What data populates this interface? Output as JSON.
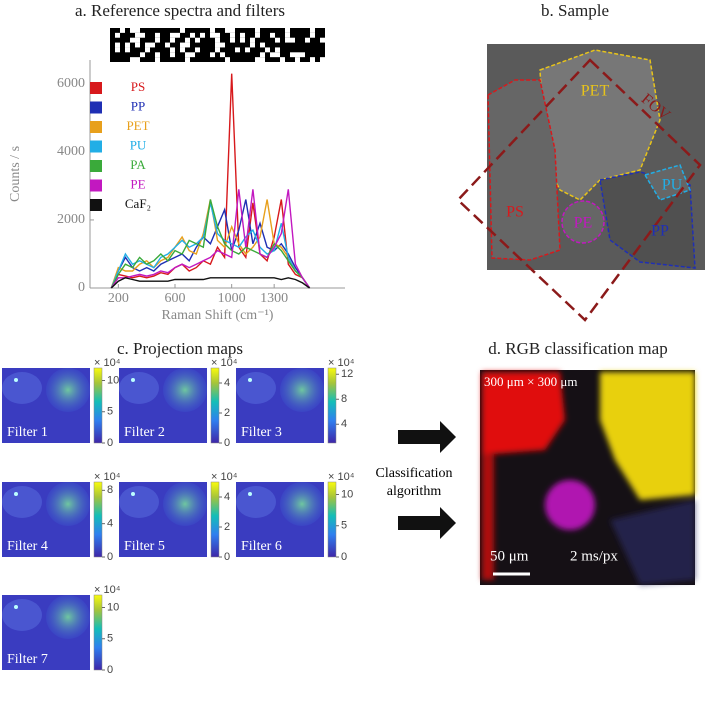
{
  "chart_data": {
    "type": "line",
    "title": "a. Reference spectra and filters",
    "x_label": "Raman Shift (cm⁻¹)",
    "y_label": "Counts / s",
    "x": [
      150,
      200,
      250,
      300,
      350,
      400,
      450,
      500,
      550,
      600,
      650,
      700,
      750,
      800,
      850,
      900,
      950,
      1000,
      1050,
      1100,
      1150,
      1200,
      1250,
      1300,
      1350,
      1400,
      1450,
      1500,
      1550
    ],
    "series": [
      {
        "name": "PS",
        "color": "#d7191c",
        "values": [
          0,
          400,
          350,
          300,
          350,
          300,
          350,
          450,
          400,
          600,
          700,
          500,
          600,
          800,
          700,
          1200,
          900,
          6300,
          1200,
          900,
          2500,
          1000,
          800,
          1500,
          2600,
          700,
          400,
          300,
          0
        ]
      },
      {
        "name": "PP",
        "color": "#1f2fb4",
        "values": [
          0,
          500,
          900,
          600,
          500,
          600,
          500,
          700,
          800,
          900,
          1000,
          800,
          1200,
          1500,
          1300,
          1800,
          2300,
          1100,
          1700,
          2600,
          1300,
          1900,
          1200,
          1100,
          1300,
          1000,
          600,
          300,
          0
        ]
      },
      {
        "name": "PET",
        "color": "#e8a01c",
        "values": [
          0,
          600,
          500,
          500,
          700,
          800,
          600,
          800,
          900,
          1200,
          1500,
          1100,
          1000,
          1600,
          2600,
          1400,
          1200,
          1800,
          1300,
          1000,
          1200,
          1500,
          2600,
          1300,
          1200,
          900,
          500,
          300,
          0
        ]
      },
      {
        "name": "PU",
        "color": "#22aee6",
        "values": [
          0,
          500,
          1000,
          700,
          800,
          700,
          600,
          900,
          1000,
          1200,
          1400,
          1200,
          1300,
          1500,
          2500,
          1600,
          1400,
          1300,
          1200,
          1500,
          1700,
          1200,
          1000,
          1100,
          1900,
          900,
          500,
          300,
          0
        ]
      },
      {
        "name": "PA",
        "color": "#3aaa3a",
        "values": [
          0,
          400,
          700,
          600,
          900,
          700,
          800,
          1000,
          800,
          1100,
          1000,
          1400,
          1300,
          1200,
          2600,
          1800,
          1300,
          1100,
          1000,
          1200,
          1100,
          1000,
          900,
          1300,
          1100,
          800,
          500,
          300,
          0
        ]
      },
      {
        "name": "PE",
        "color": "#c218c0",
        "values": [
          0,
          300,
          300,
          350,
          400,
          350,
          400,
          500,
          450,
          600,
          700,
          600,
          700,
          800,
          900,
          1100,
          1000,
          900,
          2900,
          1200,
          2900,
          1000,
          900,
          1200,
          1600,
          2900,
          700,
          300,
          0
        ]
      },
      {
        "name": "CaF₂",
        "color": "#111111",
        "values": [
          0,
          200,
          300,
          250,
          200,
          200,
          200,
          200,
          200,
          250,
          250,
          250,
          250,
          250,
          300,
          300,
          300,
          300,
          300,
          300,
          300,
          300,
          300,
          300,
          250,
          300,
          250,
          150,
          0
        ]
      }
    ],
    "xlim": [
      0,
      1800
    ],
    "ylim": [
      0,
      6700
    ],
    "xticks": [
      200,
      600,
      1000,
      1300
    ],
    "yticks": [
      0,
      2000,
      4000,
      6000
    ]
  },
  "sample": {
    "title": "b. Sample",
    "labels": [
      "PET",
      "PS",
      "PE",
      "PU",
      "PP",
      "FOV"
    ]
  },
  "projection": {
    "title": "c. Projection maps",
    "maps": [
      {
        "label": "Filter 1",
        "scale": "× 10⁴",
        "clim": [
          0,
          12
        ],
        "ticks": [
          10,
          5,
          0
        ]
      },
      {
        "label": "Filter 2",
        "scale": "× 10⁴",
        "clim": [
          0,
          5
        ],
        "ticks": [
          4,
          2,
          0
        ]
      },
      {
        "label": "Filter 3",
        "scale": "× 10⁴",
        "clim": [
          1,
          13
        ],
        "ticks": [
          12,
          8,
          4
        ]
      },
      {
        "label": "Filter 4",
        "scale": "× 10⁴",
        "clim": [
          0,
          9
        ],
        "ticks": [
          8,
          4,
          0
        ]
      },
      {
        "label": "Filter 5",
        "scale": "× 10⁴",
        "clim": [
          0,
          5
        ],
        "ticks": [
          4,
          2,
          0
        ]
      },
      {
        "label": "Filter 6",
        "scale": "× 10⁴",
        "clim": [
          0,
          12
        ],
        "ticks": [
          10,
          5,
          0
        ]
      },
      {
        "label": "Filter 7",
        "scale": "× 10⁴",
        "clim": [
          0,
          12
        ],
        "ticks": [
          10,
          5,
          0
        ]
      }
    ]
  },
  "classification": {
    "label": [
      "Classification",
      "algorithm"
    ]
  },
  "rgb_map": {
    "title": "d. RGB classification map",
    "size": "300 μm × 300 μm",
    "scale_bar": "50 μm",
    "dwell": "2 ms/px"
  }
}
